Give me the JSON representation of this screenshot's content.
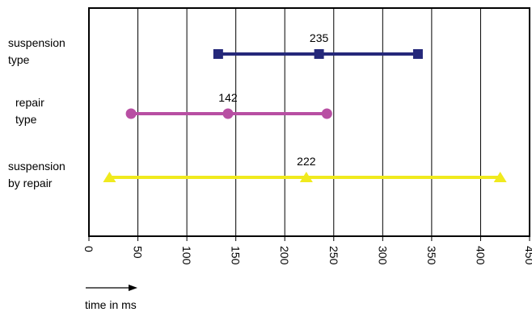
{
  "chart_data": {
    "type": "line",
    "xlim": [
      0,
      450
    ],
    "x_ticks": [
      0,
      50,
      100,
      150,
      200,
      250,
      300,
      350,
      400,
      450
    ],
    "grid": true,
    "arrow_label": "time in ms",
    "series": [
      {
        "name_lines": [
          "suspension",
          "type"
        ],
        "min": 132,
        "mean": 235,
        "max": 336,
        "mean_label": "235",
        "marker": "square",
        "color": "#25287a"
      },
      {
        "name_lines": [
          "repair",
          "type"
        ],
        "min": 43,
        "mean": 142,
        "max": 243,
        "mean_label": "142",
        "marker": "circle",
        "color": "#b84fa3"
      },
      {
        "name_lines": [
          "suspension",
          "by repair"
        ],
        "min": 21,
        "mean": 222,
        "max": 420,
        "mean_label": "222",
        "marker": "triangle",
        "color": "#f0ea1e"
      }
    ]
  }
}
